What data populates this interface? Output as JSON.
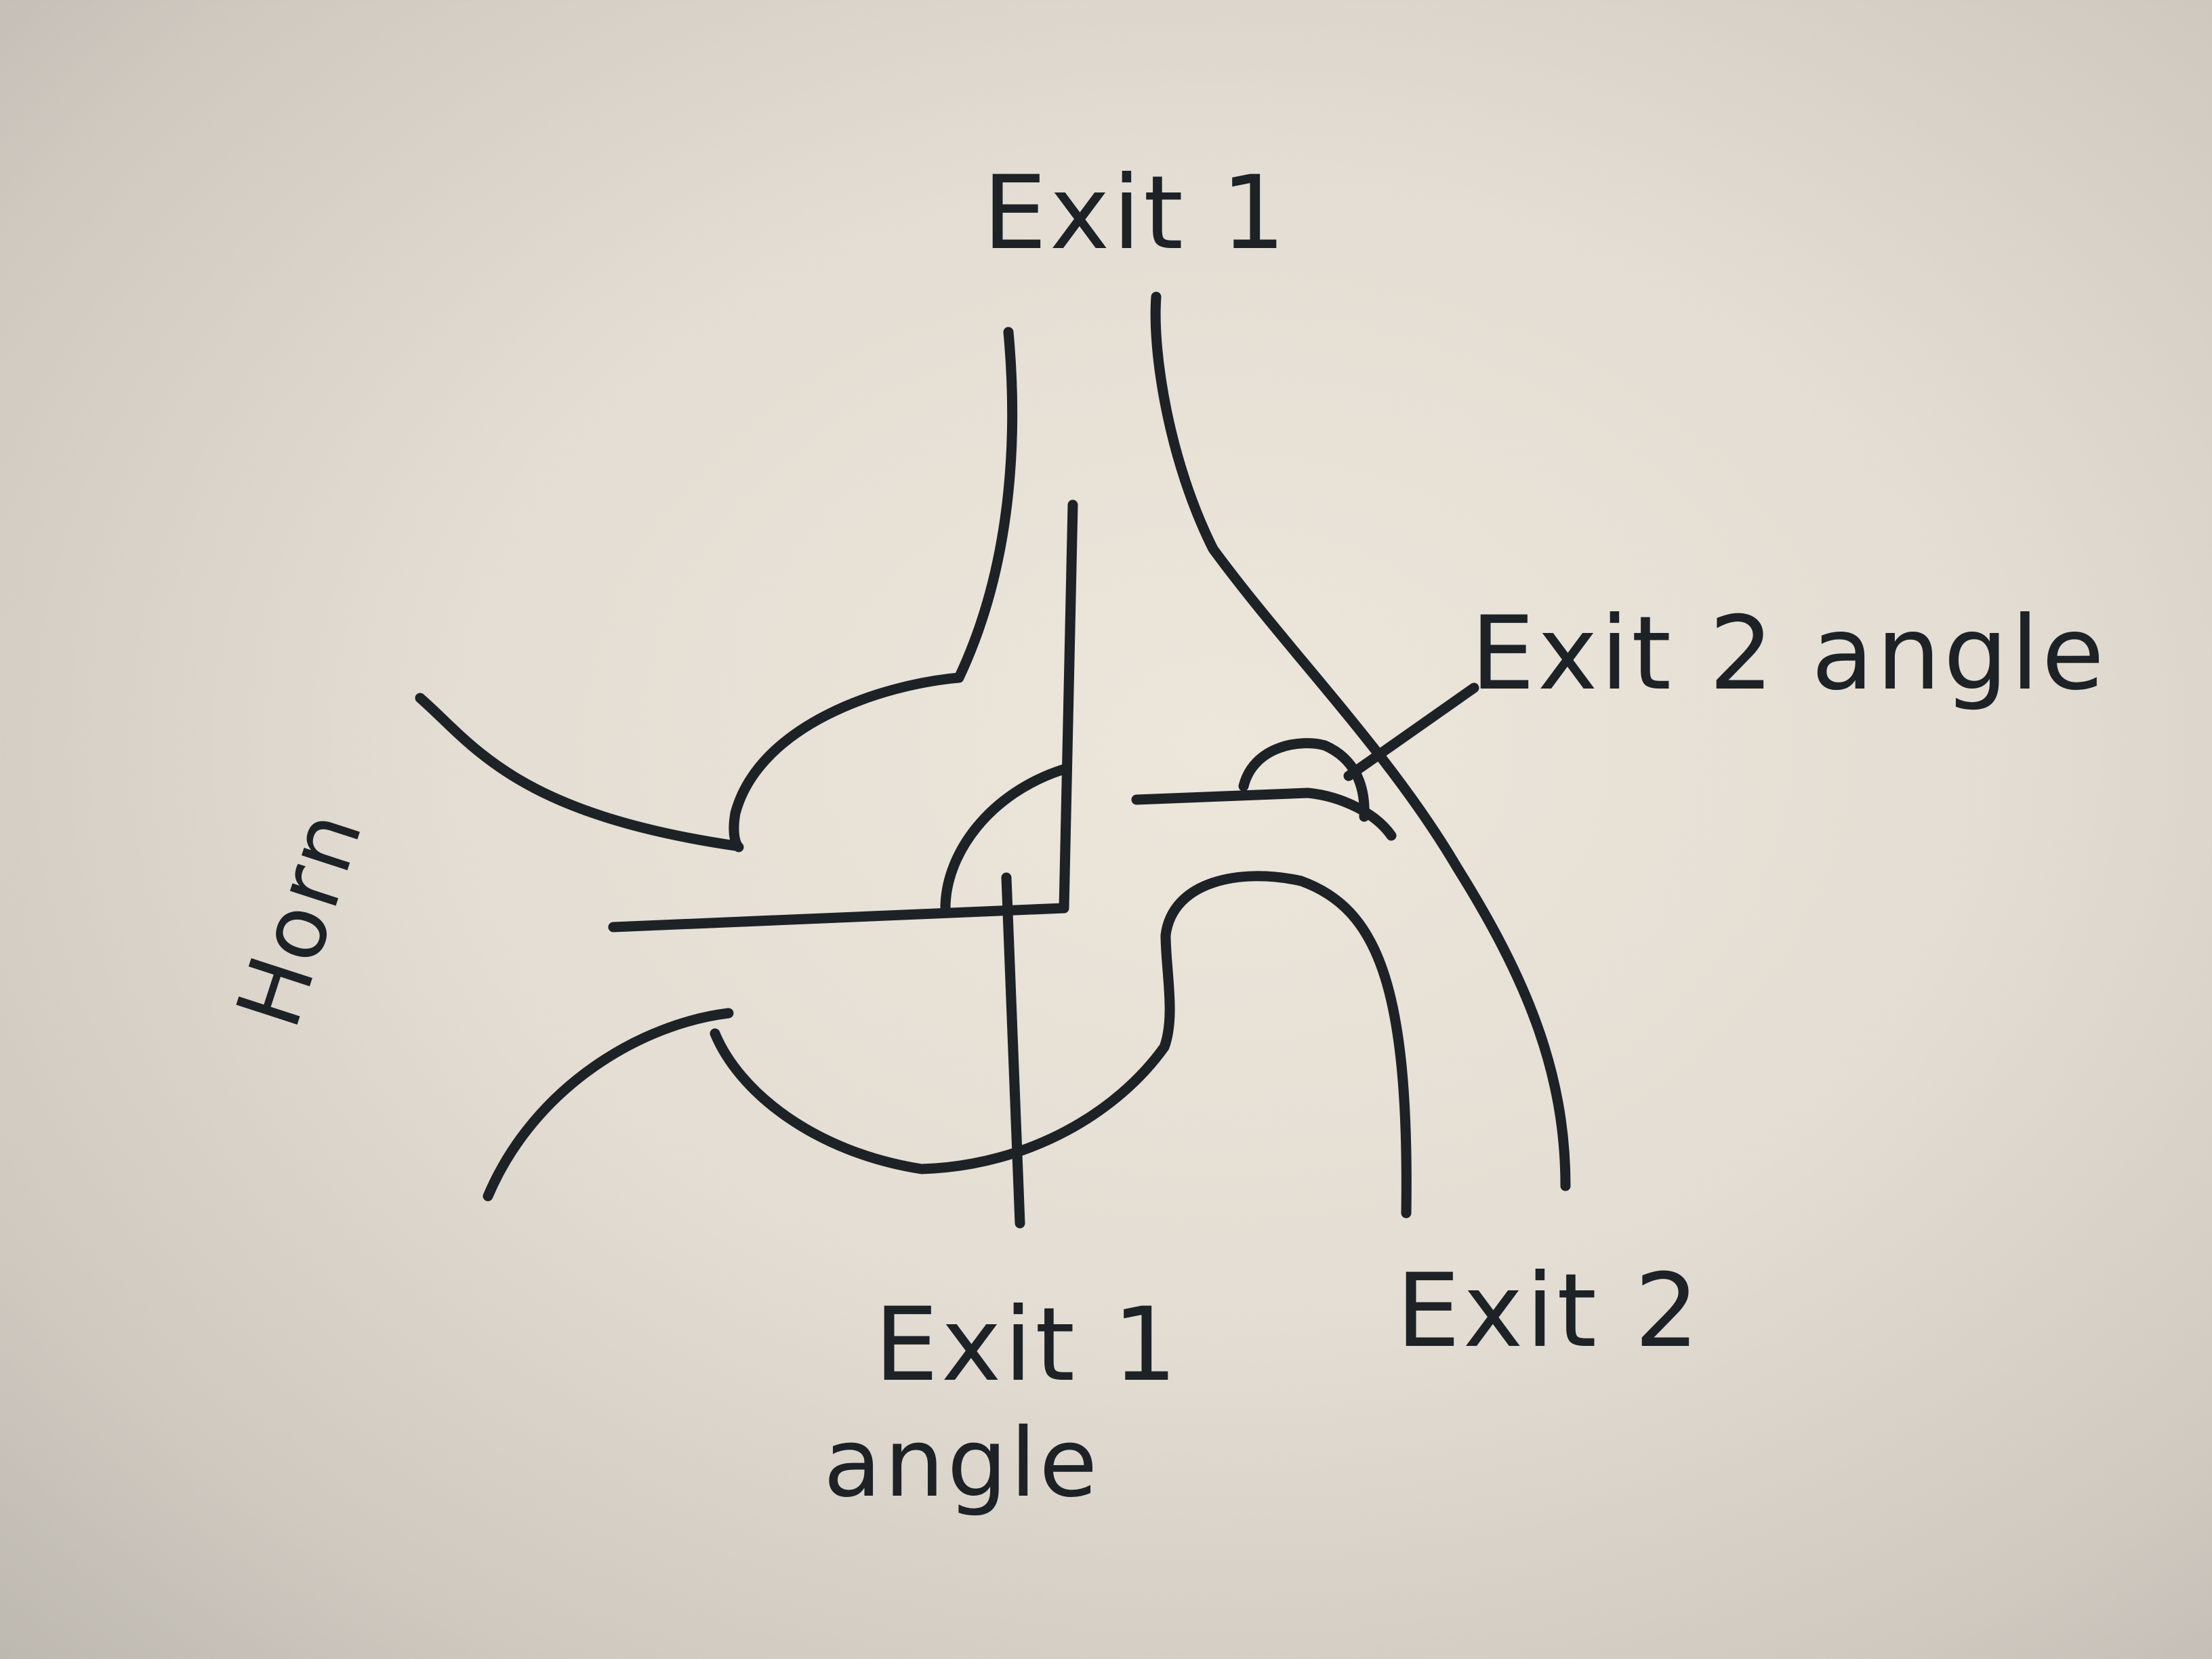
{
  "diagram": {
    "labels": {
      "exit1_top": "Exit 1",
      "exit2_angle": "Exit 2 angle",
      "exit1_angle_line1": "Exit 1",
      "exit1_angle_line2": "angle",
      "exit2": "Exit 2",
      "horn": "Horn"
    },
    "ink_color": "#1c2226",
    "paper_color": "#e6e0d6"
  }
}
